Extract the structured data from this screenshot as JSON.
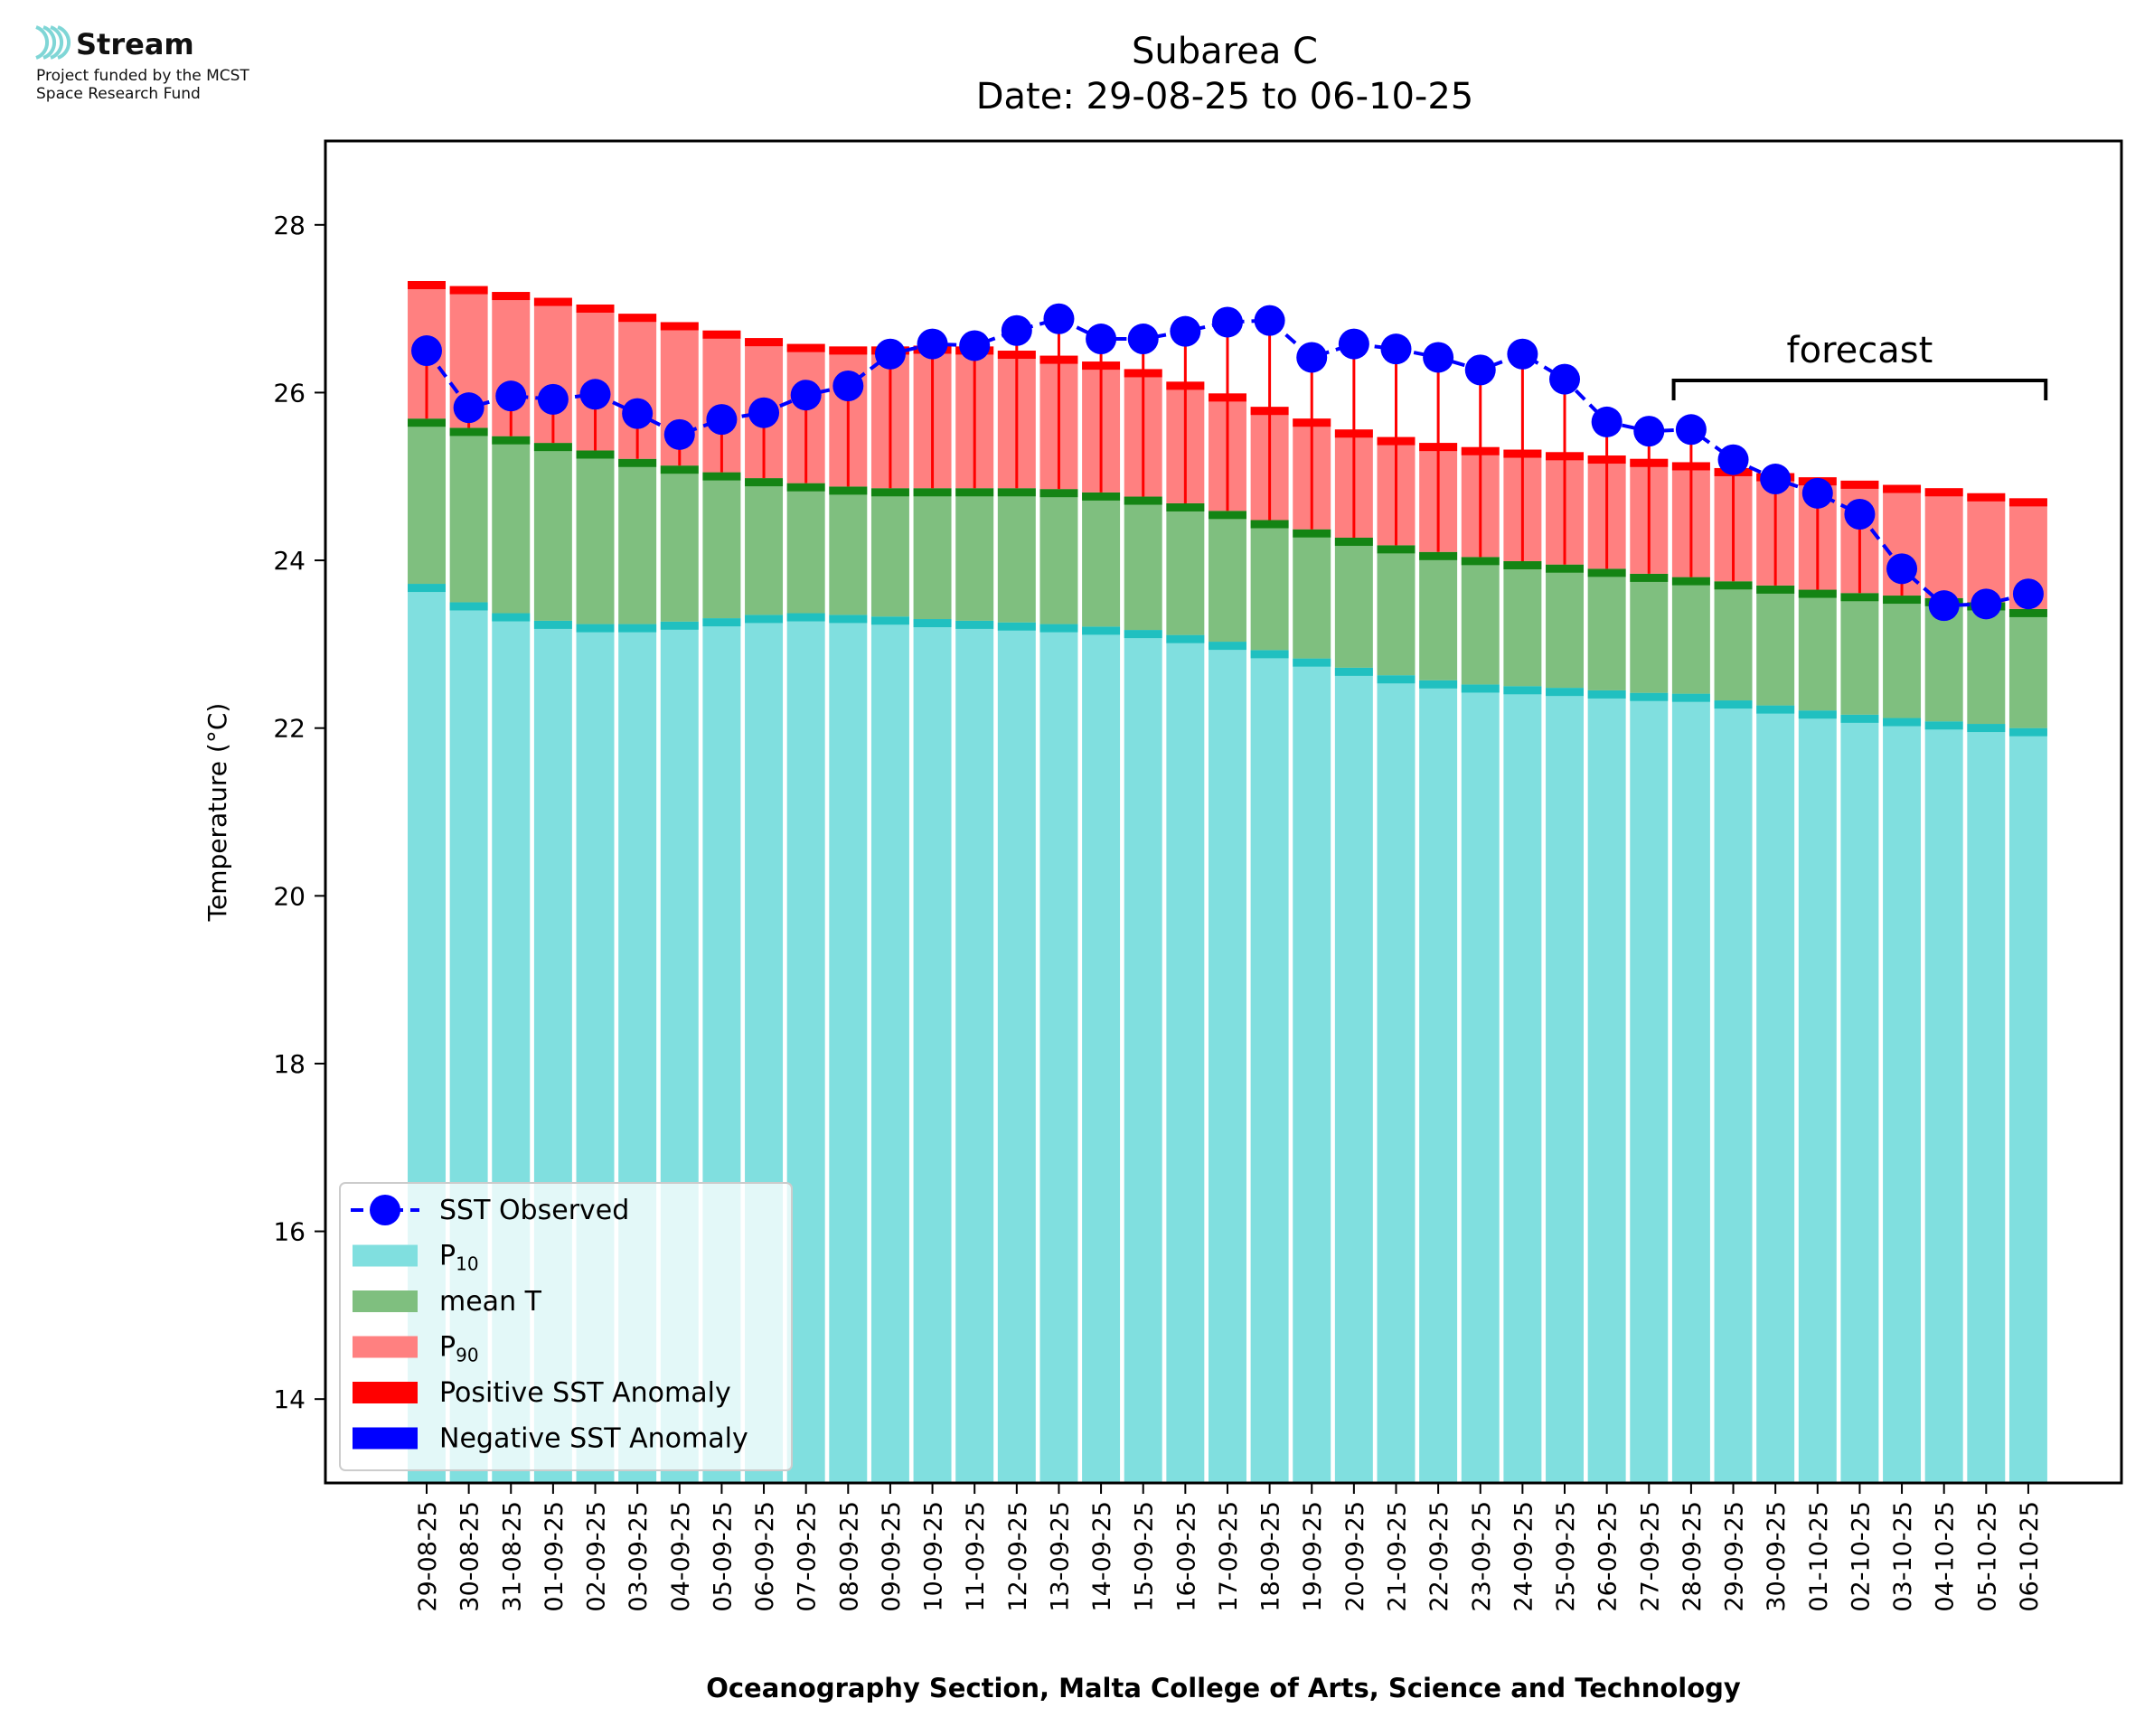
{
  "logo": {
    "brand": "Stream",
    "funded_line1": "Project funded by the MCST",
    "funded_line2": "Space Research Fund"
  },
  "colors": {
    "p10": "#80dfdf",
    "p10_edge": "#20c0c0",
    "mean": "#7fbf7f",
    "mean_edge": "#148414",
    "p90": "#ff8080",
    "p90_edge": "#ff0000",
    "positive": "#ff0000",
    "negative": "#0000ff",
    "sst": "#0000ff"
  },
  "chart_data": {
    "type": "bar",
    "title": "Subarea C",
    "subtitle": "Date: 29-08-25 to 06-10-25",
    "xlabel": "Oceanography Section, Malta College of Arts, Science and Technology",
    "ylabel": "Temperature (°C)",
    "ylim": [
      13,
      29
    ],
    "yticks": [
      14,
      16,
      18,
      20,
      22,
      24,
      26,
      28
    ],
    "grid": false,
    "legend_position": "lower-left",
    "annotation": "forecast",
    "forecast_range": [
      "28-09-25",
      "06-10-25"
    ],
    "categories": [
      "29-08-25",
      "30-08-25",
      "31-08-25",
      "01-09-25",
      "02-09-25",
      "03-09-25",
      "04-09-25",
      "05-09-25",
      "06-09-25",
      "07-09-25",
      "08-09-25",
      "09-09-25",
      "10-09-25",
      "11-09-25",
      "12-09-25",
      "13-09-25",
      "14-09-25",
      "15-09-25",
      "16-09-25",
      "17-09-25",
      "18-09-25",
      "19-09-25",
      "20-09-25",
      "21-09-25",
      "22-09-25",
      "23-09-25",
      "24-09-25",
      "25-09-25",
      "26-09-25",
      "27-09-25",
      "28-09-25",
      "29-09-25",
      "30-09-25",
      "01-10-25",
      "02-10-25",
      "03-10-25",
      "04-10-25",
      "05-10-25",
      "06-10-25"
    ],
    "series": [
      {
        "name": "P10",
        "values": [
          23.72,
          23.5,
          23.37,
          23.28,
          23.24,
          23.24,
          23.27,
          23.31,
          23.35,
          23.37,
          23.35,
          23.33,
          23.3,
          23.28,
          23.26,
          23.24,
          23.21,
          23.17,
          23.11,
          23.03,
          22.93,
          22.83,
          22.72,
          22.63,
          22.57,
          22.52,
          22.5,
          22.48,
          22.45,
          22.42,
          22.41,
          22.33,
          22.27,
          22.21,
          22.16,
          22.12,
          22.08,
          22.05,
          22.0
        ]
      },
      {
        "name": "mean T",
        "values": [
          25.69,
          25.58,
          25.48,
          25.4,
          25.31,
          25.21,
          25.13,
          25.05,
          24.98,
          24.92,
          24.88,
          24.86,
          24.86,
          24.86,
          24.86,
          24.85,
          24.81,
          24.76,
          24.68,
          24.59,
          24.48,
          24.37,
          24.27,
          24.18,
          24.1,
          24.04,
          23.99,
          23.95,
          23.9,
          23.84,
          23.8,
          23.75,
          23.7,
          23.65,
          23.61,
          23.58,
          23.55,
          23.5,
          23.42
        ]
      },
      {
        "name": "P90",
        "values": [
          27.33,
          27.27,
          27.2,
          27.13,
          27.05,
          26.94,
          26.84,
          26.74,
          26.65,
          26.58,
          26.55,
          26.55,
          26.56,
          26.55,
          26.5,
          26.44,
          26.37,
          26.28,
          26.13,
          25.99,
          25.83,
          25.69,
          25.56,
          25.47,
          25.4,
          25.35,
          25.32,
          25.29,
          25.25,
          25.21,
          25.17,
          25.1,
          25.04,
          24.99,
          24.95,
          24.9,
          24.86,
          24.8,
          24.74
        ]
      },
      {
        "name": "SST Observed",
        "values": [
          26.5,
          25.82,
          25.96,
          25.92,
          25.98,
          25.75,
          25.5,
          25.68,
          25.76,
          25.97,
          26.08,
          26.46,
          26.58,
          26.56,
          26.74,
          26.88,
          26.64,
          26.64,
          26.73,
          26.84,
          26.86,
          26.42,
          26.58,
          26.52,
          26.42,
          26.27,
          26.46,
          26.16,
          25.65,
          25.54,
          25.56,
          25.2,
          24.97,
          24.8,
          24.55,
          23.9,
          23.46,
          23.48,
          23.6
        ]
      }
    ],
    "legend": [
      "SST Observed",
      "P10",
      "mean T",
      "P90",
      "Positive SST Anomaly",
      "Negative SST Anomaly"
    ]
  }
}
